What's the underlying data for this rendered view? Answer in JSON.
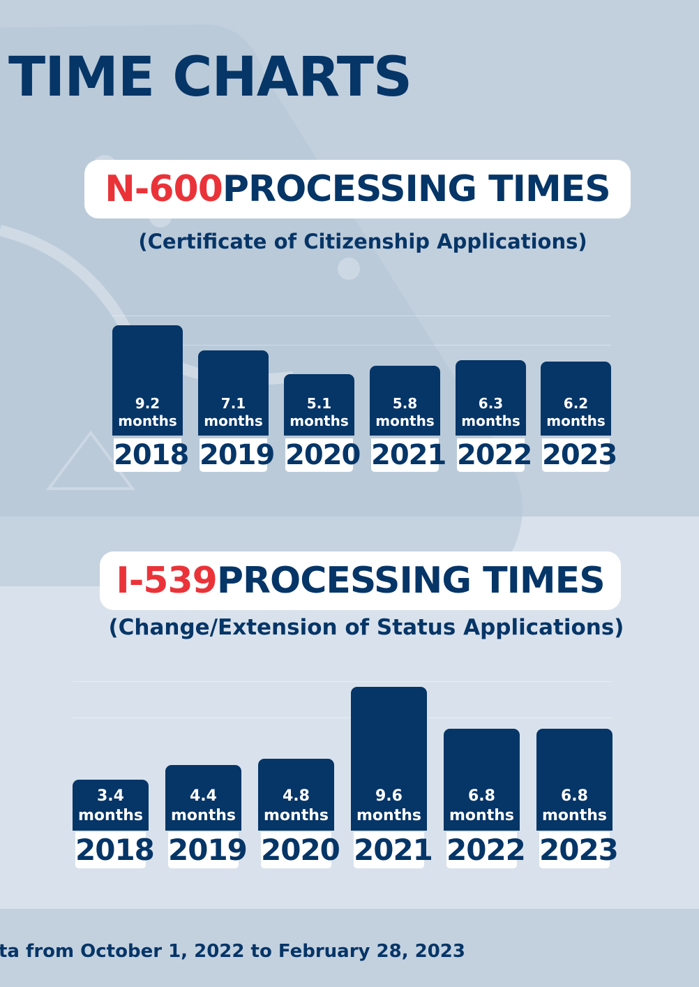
{
  "page_title": "TIME CHARTS",
  "colors": {
    "navy": "#063567",
    "red": "#ea3339",
    "background": "#c3d1df",
    "panel": "#d9e2ec"
  },
  "chart_data": [
    {
      "type": "bar",
      "title_code": "N-600",
      "title_rest": " PROCESSING TIMES",
      "subtitle": "(Certificate of Citizenship Applications)",
      "categories": [
        "2018",
        "2019",
        "2020",
        "2021",
        "2022",
        "2023"
      ],
      "values": [
        9.2,
        7.1,
        5.1,
        5.8,
        6.3,
        6.2
      ],
      "unit": "months",
      "ylim": [
        0,
        9.2
      ]
    },
    {
      "type": "bar",
      "title_code": "I-539",
      "title_rest": " PROCESSING TIMES",
      "subtitle": "(Change/Extension of Status Applications)",
      "categories": [
        "2018",
        "2019",
        "2020",
        "2021",
        "2022",
        "2023"
      ],
      "values": [
        3.4,
        4.4,
        4.8,
        9.6,
        6.8,
        6.8
      ],
      "unit": "months",
      "ylim": [
        0,
        9.6
      ]
    }
  ],
  "footer_text": "ta from October 1, 2022 to February 28, 2023"
}
